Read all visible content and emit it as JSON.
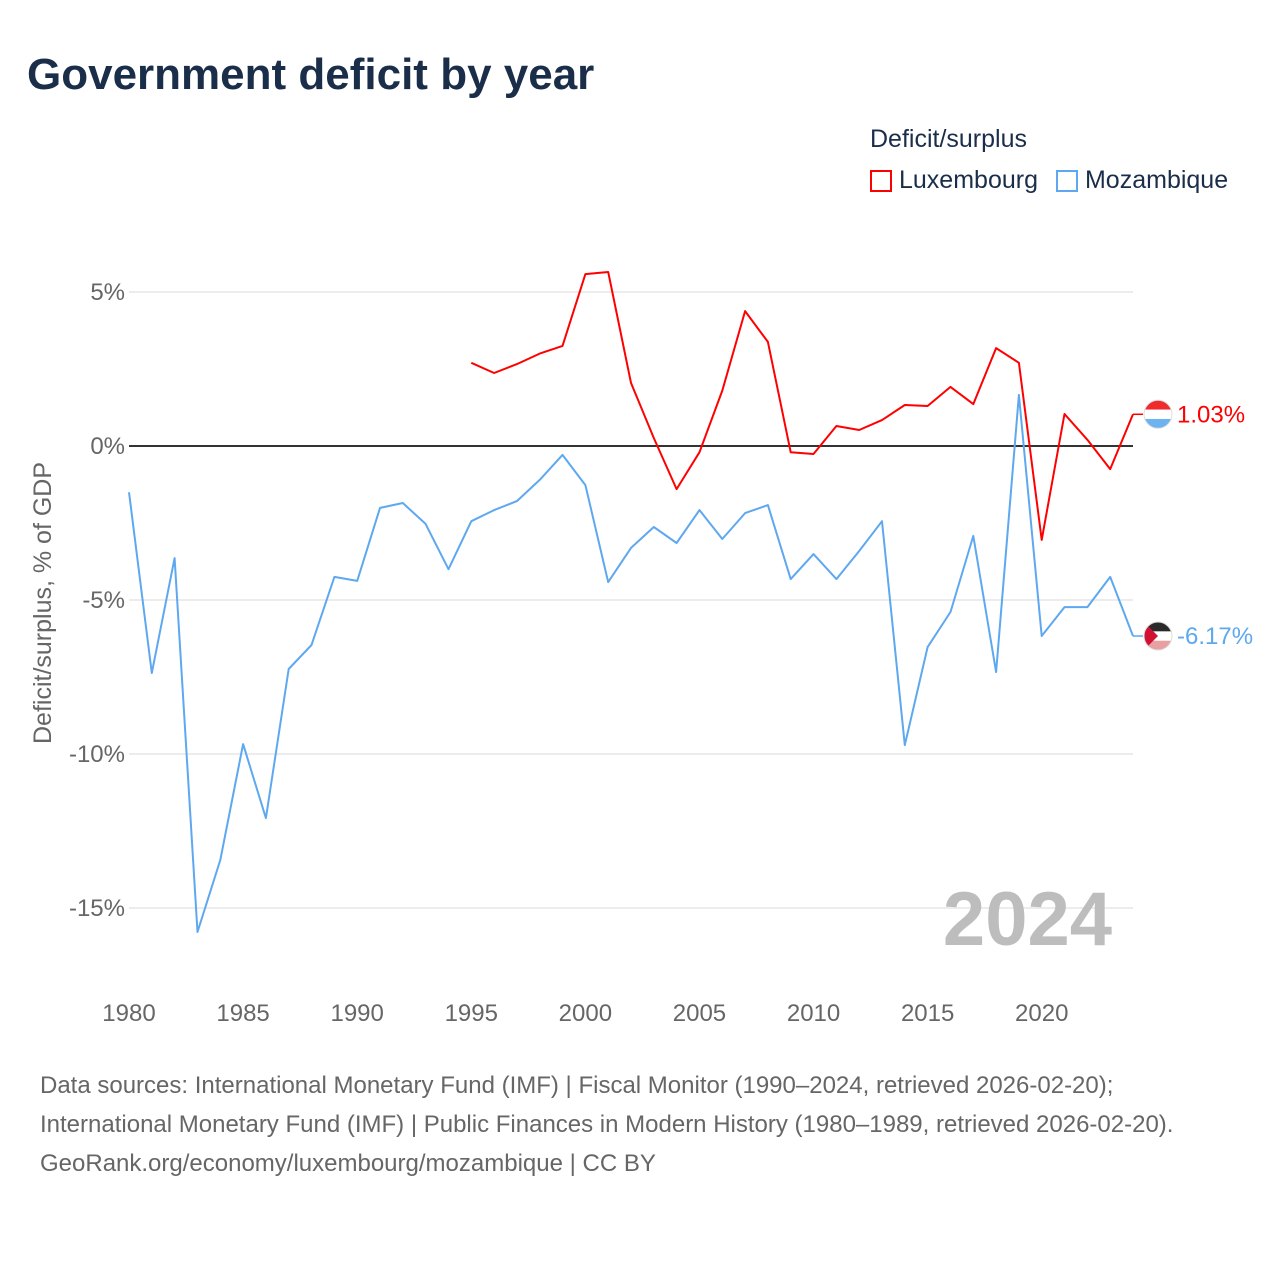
{
  "title": "Government deficit by year",
  "legend": {
    "title": "Deficit/surplus",
    "items": [
      {
        "name": "Luxembourg",
        "color": "#ff0000"
      },
      {
        "name": "Mozambique",
        "color": "#5ea8ef"
      }
    ]
  },
  "watermark_year": "2024",
  "footer": {
    "sources": "Data sources: International Monetary Fund (IMF) | Fiscal Monitor (1990–2024, retrieved 2026-02-20); International Monetary Fund (IMF) | Public Finances in Modern History (1980–1989, retrieved 2026-02-20).",
    "credit": "GeoRank.org/economy/luxembourg/mozambique | CC BY"
  },
  "chart_data": {
    "type": "line",
    "title": "Government deficit by year",
    "xlabel": "",
    "ylabel": "Deficit/surplus, % of GDP",
    "xlim": [
      1980,
      2024
    ],
    "ylim": [
      -17,
      7
    ],
    "x_ticks": [
      1980,
      1985,
      1990,
      1995,
      2000,
      2005,
      2010,
      2015,
      2020
    ],
    "y_ticks": [
      {
        "v": 5,
        "label": "5%"
      },
      {
        "v": 0,
        "label": "0%"
      },
      {
        "v": -5,
        "label": "-5%"
      },
      {
        "v": -10,
        "label": "-10%"
      },
      {
        "v": -15,
        "label": "-15%"
      }
    ],
    "grid": true,
    "legend_position": "top-right",
    "series": [
      {
        "name": "Luxembourg",
        "color": "#ff0000",
        "end_label": "1.03%",
        "start_year": 1995,
        "values": [
          2.7,
          2.37,
          2.66,
          3.0,
          3.25,
          5.58,
          5.65,
          2.05,
          0.26,
          -1.4,
          -0.2,
          1.8,
          4.38,
          3.38,
          -0.2,
          -0.26,
          0.65,
          0.52,
          0.84,
          1.33,
          1.3,
          1.92,
          1.36,
          3.18,
          2.7,
          -3.05,
          1.04,
          0.2,
          -0.75,
          1.03
        ]
      },
      {
        "name": "Mozambique",
        "color": "#5ea8ef",
        "end_label": "-6.17%",
        "start_year": 1980,
        "values": [
          -1.5,
          -7.37,
          -3.64,
          -15.78,
          -13.44,
          -9.68,
          -12.08,
          -7.24,
          -6.46,
          -4.25,
          -4.38,
          -2.01,
          -1.85,
          -2.53,
          -4.0,
          -2.44,
          -2.08,
          -1.79,
          -1.1,
          -0.29,
          -1.27,
          -4.42,
          -3.31,
          -2.63,
          -3.15,
          -2.08,
          -3.02,
          -2.18,
          -1.92,
          -4.32,
          -3.51,
          -4.32,
          -3.41,
          -2.44,
          -9.71,
          -6.53,
          -5.39,
          -2.92,
          -7.34,
          1.66,
          -6.17,
          -5.23,
          -5.23,
          -4.25,
          -6.17
        ]
      }
    ]
  }
}
